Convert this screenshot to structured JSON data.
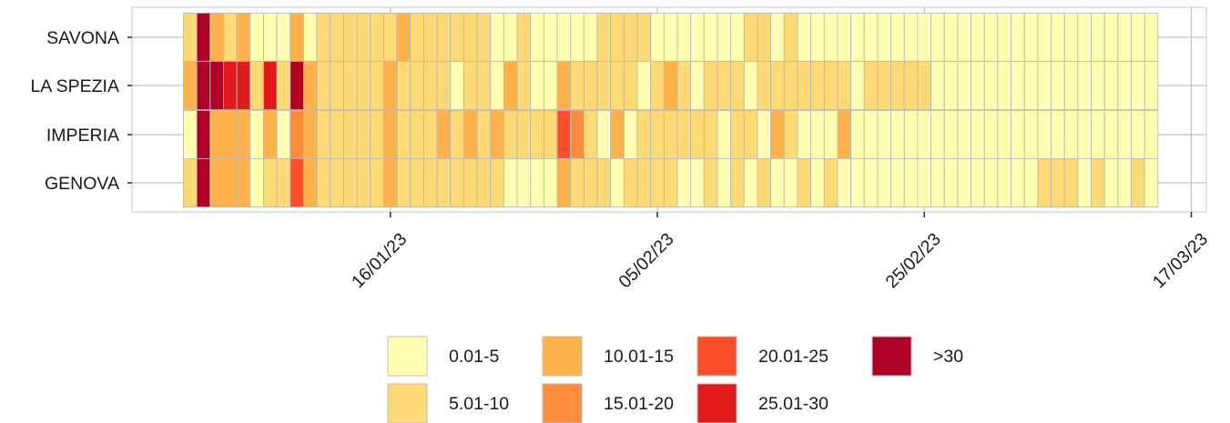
{
  "chart_data": {
    "type": "heatmap",
    "rows": [
      "SAVONA",
      "LA SPEZIA",
      "IMPERIA",
      "GENOVA"
    ],
    "x": {
      "start": "2023-01-01",
      "days": 73,
      "ticks": [
        {
          "date": "2023-01-16",
          "label": "16/01/23"
        },
        {
          "date": "2023-02-05",
          "label": "05/02/23"
        },
        {
          "date": "2023-02-25",
          "label": "25/02/23"
        },
        {
          "date": "2023-03-17",
          "label": "17/03/23"
        }
      ],
      "range": [
        "2022-12-30",
        "2023-03-17"
      ]
    },
    "values": [
      [
        2,
        7,
        3,
        2,
        3,
        1,
        1,
        1,
        3,
        1,
        2,
        2,
        2,
        2,
        2,
        2,
        3,
        2,
        2,
        2,
        2,
        2,
        2,
        1,
        1,
        2,
        1,
        1,
        1,
        1,
        1,
        2,
        2,
        2,
        2,
        1,
        1,
        1,
        1,
        1,
        1,
        1,
        2,
        2,
        1,
        2,
        1,
        1,
        1,
        1,
        1,
        1,
        1,
        1,
        1,
        1,
        1,
        1,
        1,
        1,
        1,
        1,
        1,
        1,
        1,
        1,
        1,
        1,
        1,
        1,
        1,
        1,
        1
      ],
      [
        3,
        7,
        7,
        6,
        6,
        2,
        6,
        2,
        7,
        3,
        2,
        2,
        2,
        2,
        2,
        3,
        2,
        2,
        2,
        2,
        1,
        2,
        2,
        1,
        3,
        2,
        1,
        1,
        3,
        2,
        2,
        2,
        2,
        2,
        1,
        2,
        3,
        2,
        1,
        2,
        2,
        2,
        1,
        2,
        2,
        2,
        2,
        2,
        2,
        2,
        1,
        2,
        2,
        2,
        2,
        2,
        1,
        1,
        1,
        1,
        1,
        1,
        1,
        1,
        1,
        1,
        1,
        1,
        1,
        1,
        1,
        1,
        1
      ],
      [
        1,
        7,
        3,
        3,
        3,
        1,
        3,
        1,
        4,
        3,
        2,
        2,
        2,
        2,
        2,
        3,
        2,
        2,
        2,
        3,
        2,
        3,
        2,
        3,
        2,
        2,
        2,
        2,
        5,
        4,
        2,
        1,
        3,
        1,
        2,
        2,
        2,
        2,
        2,
        2,
        1,
        2,
        2,
        1,
        3,
        2,
        1,
        1,
        1,
        3,
        1,
        1,
        1,
        1,
        1,
        1,
        1,
        1,
        1,
        1,
        1,
        1,
        1,
        1,
        1,
        1,
        1,
        1,
        1,
        1,
        1,
        1,
        1
      ],
      [
        2,
        7,
        3,
        3,
        3,
        1,
        2,
        2,
        5,
        3,
        2,
        2,
        2,
        2,
        2,
        3,
        2,
        2,
        2,
        2,
        2,
        2,
        2,
        2,
        1,
        1,
        1,
        1,
        3,
        2,
        2,
        2,
        1,
        2,
        2,
        2,
        2,
        1,
        1,
        2,
        1,
        2,
        1,
        2,
        1,
        1,
        2,
        1,
        2,
        1,
        1,
        1,
        1,
        1,
        1,
        1,
        1,
        1,
        1,
        1,
        1,
        1,
        1,
        1,
        2,
        2,
        2,
        1,
        2,
        1,
        1,
        2,
        1
      ],
      "values are class indices 1-7 into legend.items (readings per day)"
    ],
    "legend": {
      "items": [
        {
          "label": "0.01-5",
          "color": "#FFFFB2"
        },
        {
          "label": "5.01-10",
          "color": "#FED976"
        },
        {
          "label": "10.01-15",
          "color": "#FEB24C"
        },
        {
          "label": "15.01-20",
          "color": "#FD8D3C"
        },
        {
          "label": "20.01-25",
          "color": "#FC4E2A"
        },
        {
          "label": "25.01-30",
          "color": "#E31A1C"
        },
        {
          "label": ">30",
          "color": "#B10026"
        }
      ],
      "position": "bottom"
    },
    "grid": true,
    "title": "",
    "xlabel": "",
    "ylabel": ""
  }
}
